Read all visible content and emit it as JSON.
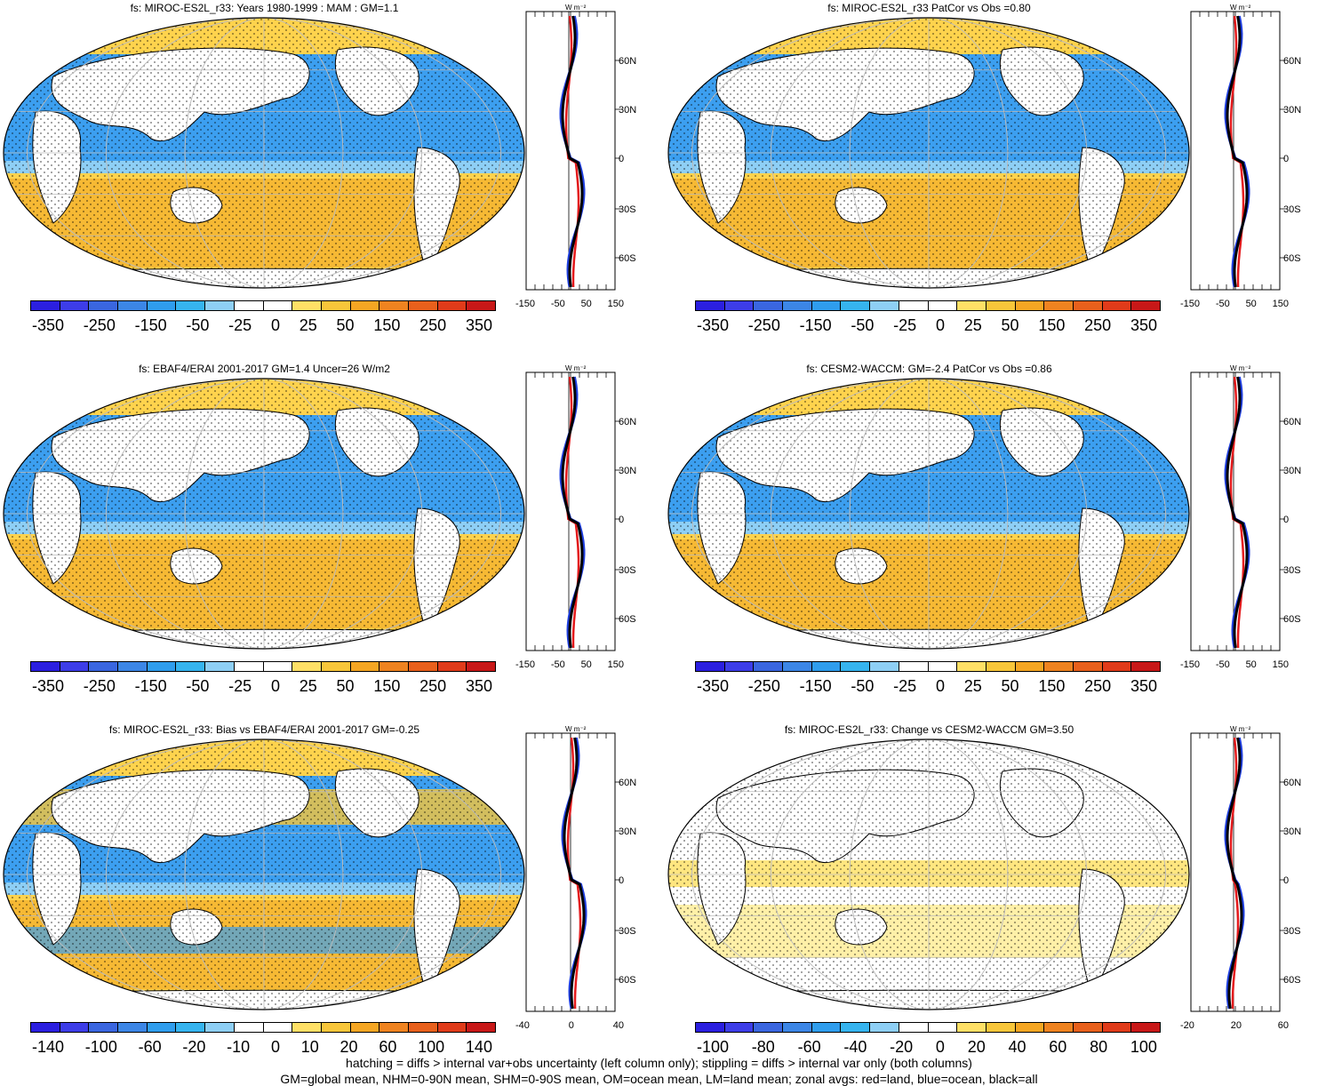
{
  "panels": [
    {
      "title": "fs: MIROC-ES2L_r33: Years 1980-1999 : MAM : GM=1.1",
      "cbar": [
        "-350",
        "-250",
        "-150",
        "-50",
        "-25",
        "0",
        "25",
        "50",
        "150",
        "250",
        "350"
      ],
      "zticks": [
        "-150",
        "-50",
        "50",
        "150"
      ],
      "scheme": "full"
    },
    {
      "title": "fs: MIROC-ES2L_r33 PatCor vs Obs =0.80",
      "cbar": [
        "-350",
        "-250",
        "-150",
        "-50",
        "-25",
        "0",
        "25",
        "50",
        "150",
        "250",
        "350"
      ],
      "zticks": [
        "-150",
        "-50",
        "50",
        "150"
      ],
      "scheme": "full"
    },
    {
      "title": "fs: EBAF4/ERAI 2001-2017 GM=1.4 Uncer=26 W/m2",
      "cbar": [
        "-350",
        "-250",
        "-150",
        "-50",
        "-25",
        "0",
        "25",
        "50",
        "150",
        "250",
        "350"
      ],
      "zticks": [
        "-150",
        "-50",
        "50",
        "150"
      ],
      "scheme": "full"
    },
    {
      "title": "fs: CESM2-WACCM: GM=-2.4 PatCor vs Obs =0.86",
      "cbar": [
        "-350",
        "-250",
        "-150",
        "-50",
        "-25",
        "0",
        "25",
        "50",
        "150",
        "250",
        "350"
      ],
      "zticks": [
        "-150",
        "-50",
        "50",
        "150"
      ],
      "scheme": "full"
    },
    {
      "title": "fs: MIROC-ES2L_r33: Bias vs EBAF4/ERAI 2001-2017 GM=-0.25",
      "cbar": [
        "-140",
        "-100",
        "-60",
        "-20",
        "-10",
        "0",
        "10",
        "20",
        "60",
        "100",
        "140"
      ],
      "zticks": [
        "-40",
        "0",
        "40"
      ],
      "scheme": "bias"
    },
    {
      "title": "fs: MIROC-ES2L_r33: Change vs CESM2-WACCM GM=3.50",
      "cbar": [
        "-100",
        "-80",
        "-60",
        "-40",
        "-20",
        "0",
        "20",
        "40",
        "60",
        "80",
        "100"
      ],
      "zticks": [
        "-20",
        "20",
        "60"
      ],
      "scheme": "change"
    }
  ],
  "lat_labels": [
    "60N",
    "30N",
    "0",
    "30S",
    "60S"
  ],
  "unit": "W m⁻²",
  "colors": [
    "#2b1fe0",
    "#3d3de8",
    "#3a66e0",
    "#3c86e6",
    "#2f9ded",
    "#36b4ef",
    "#8ecff5",
    "#ffffff",
    "#ffffff",
    "#ffe066",
    "#f8c63a",
    "#f5a623",
    "#ef8320",
    "#e8601c",
    "#e03b1a",
    "#c81818"
  ],
  "footer": {
    "line1": "hatching = diffs > internal var+obs uncertainty (left column only); stippling = diffs > internal var only (both columns)",
    "line2": "GM=global mean, NHM=0-90N mean, SHM=0-90S mean, OM=ocean mean, LM=land mean; zonal avgs: red=land, blue=ocean, black=all"
  }
}
